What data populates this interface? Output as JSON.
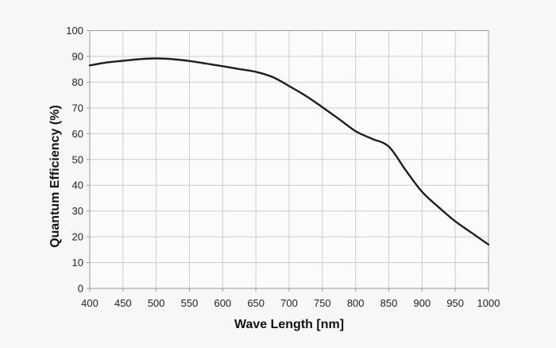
{
  "page": {
    "background": "#f7f7f7"
  },
  "chart_data": {
    "type": "line",
    "title": "",
    "xlabel": "Wave Length [nm]",
    "ylabel": "Quantum Efficiency (%)",
    "xlim": [
      400,
      1000
    ],
    "ylim": [
      0,
      100
    ],
    "xticks": [
      400,
      450,
      500,
      550,
      600,
      650,
      700,
      750,
      800,
      850,
      900,
      950,
      1000
    ],
    "yticks": [
      0,
      10,
      20,
      30,
      40,
      50,
      60,
      70,
      80,
      90,
      100
    ],
    "grid": true,
    "legend_position": "none",
    "series": [
      {
        "name": "Quantum Efficiency",
        "x": [
          400,
          425,
          450,
          475,
          500,
          525,
          550,
          575,
          600,
          625,
          650,
          675,
          700,
          725,
          750,
          775,
          800,
          825,
          850,
          875,
          900,
          925,
          950,
          975,
          1000
        ],
        "y": [
          86.5,
          87.6,
          88.3,
          88.9,
          89.2,
          88.9,
          88.2,
          87.2,
          86.2,
          85.1,
          84.0,
          82.0,
          78.5,
          74.7,
          70.3,
          65.7,
          61.0,
          58.0,
          55.0,
          46.0,
          37.5,
          31.5,
          26.0,
          21.5,
          17.0
        ]
      }
    ],
    "colors": {
      "line": "#1d1d1d",
      "grid": "#cdcdcd",
      "axis": "#9b9b9b",
      "plot_background": "#fbfbfb",
      "background": "#f7f7f7",
      "tick_text": "#222222",
      "title_text": "#111111"
    }
  }
}
